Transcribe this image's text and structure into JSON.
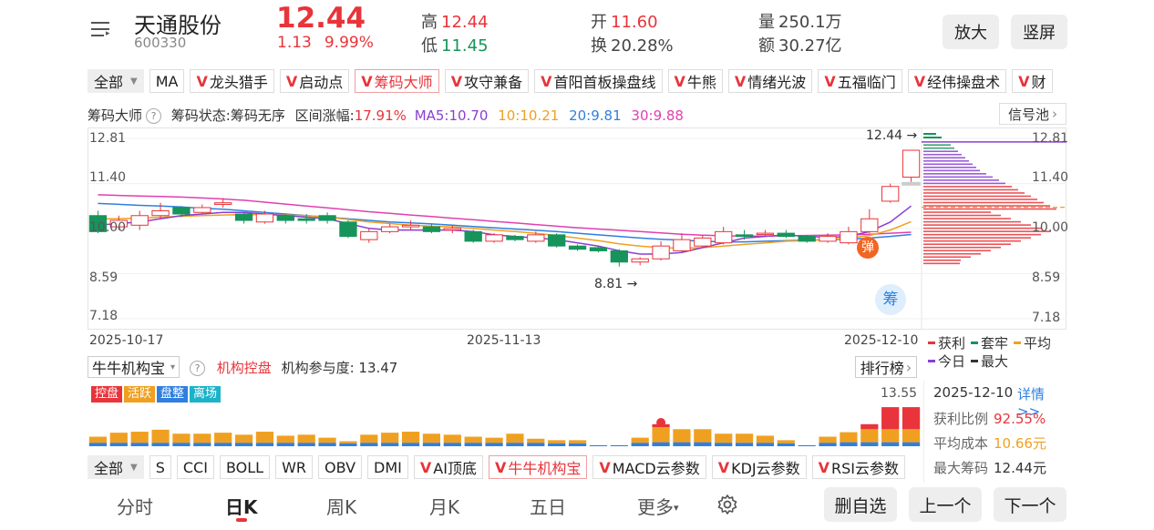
{
  "header": {
    "name": "天通股份",
    "code": "600330",
    "price": "12.44",
    "change": "1.13",
    "change_pct": "9.99%",
    "high_label": "高",
    "high": "12.44",
    "low_label": "低",
    "low": "11.45",
    "open_label": "开",
    "open": "11.60",
    "turnover_label": "换",
    "turnover": "20.28%",
    "volume_label": "量",
    "volume": "250.1万",
    "amount_label": "额",
    "amount": "30.27亿",
    "zoom_label": "放大",
    "portrait_label": "竖屏"
  },
  "indicator_tabs": [
    "全部",
    "MA",
    "龙头猎手",
    "启动点",
    "筹码大师",
    "攻守兼备",
    "首阳首板操盘线",
    "牛熊",
    "情绪光波",
    "五福临门",
    "经伟操盘术",
    "财"
  ],
  "main_info": {
    "title": "筹码大师",
    "status": "筹码状态:筹码无序",
    "range_label": "区间涨幅:",
    "range_value": "17.91%",
    "ma5": "MA5:10.70",
    "ma10": "10:10.21",
    "ma20": "20:9.81",
    "ma30": "30:9.88",
    "signal_pool": "信号池"
  },
  "colors": {
    "up": "#e8343a",
    "down": "#16945b",
    "ma5": "#8a3fd1",
    "ma10": "#f0a020",
    "ma20": "#2f7fe0",
    "ma30": "#e040b0"
  },
  "chart_data": {
    "type": "candlestick",
    "y_ticks": [
      "12.81",
      "11.40",
      "10.00",
      "8.59",
      "7.18"
    ],
    "ylim": [
      7.18,
      12.81
    ],
    "x_ticks": [
      "2025-10-17",
      "2025-11-13",
      "2025-12-10"
    ],
    "high_marker": "12.44",
    "low_marker": "8.81",
    "candles": [
      {
        "o": 10.4,
        "c": 9.9,
        "h": 10.55,
        "l": 9.85
      },
      {
        "o": 10.05,
        "c": 10.25,
        "h": 10.4,
        "l": 9.95
      },
      {
        "o": 10.1,
        "c": 10.4,
        "h": 10.55,
        "l": 9.95
      },
      {
        "o": 10.4,
        "c": 10.55,
        "h": 10.8,
        "l": 10.3
      },
      {
        "o": 10.65,
        "c": 10.45,
        "h": 10.7,
        "l": 10.35
      },
      {
        "o": 10.5,
        "c": 10.65,
        "h": 10.75,
        "l": 10.45
      },
      {
        "o": 10.75,
        "c": 10.8,
        "h": 10.95,
        "l": 10.65
      },
      {
        "o": 10.45,
        "c": 10.25,
        "h": 10.5,
        "l": 10.15
      },
      {
        "o": 10.2,
        "c": 10.45,
        "h": 10.55,
        "l": 10.15
      },
      {
        "o": 10.4,
        "c": 10.25,
        "h": 10.45,
        "l": 10.15
      },
      {
        "o": 10.3,
        "c": 10.25,
        "h": 10.45,
        "l": 10.15
      },
      {
        "o": 10.4,
        "c": 10.25,
        "h": 10.5,
        "l": 10.15
      },
      {
        "o": 10.2,
        "c": 9.75,
        "h": 10.25,
        "l": 9.7
      },
      {
        "o": 9.65,
        "c": 9.9,
        "h": 10.0,
        "l": 9.55
      },
      {
        "o": 9.9,
        "c": 10.05,
        "h": 10.15,
        "l": 9.85
      },
      {
        "o": 10.05,
        "c": 10.1,
        "h": 10.25,
        "l": 9.95
      },
      {
        "o": 10.05,
        "c": 9.9,
        "h": 10.15,
        "l": 9.85
      },
      {
        "o": 9.95,
        "c": 10.0,
        "h": 10.1,
        "l": 9.85
      },
      {
        "o": 9.9,
        "c": 9.6,
        "h": 9.95,
        "l": 9.55
      },
      {
        "o": 9.6,
        "c": 9.8,
        "h": 9.85,
        "l": 9.55
      },
      {
        "o": 9.75,
        "c": 9.65,
        "h": 9.8,
        "l": 9.6
      },
      {
        "o": 9.6,
        "c": 9.8,
        "h": 9.9,
        "l": 9.55
      },
      {
        "o": 9.8,
        "c": 9.45,
        "h": 9.85,
        "l": 9.4
      },
      {
        "o": 9.45,
        "c": 9.35,
        "h": 9.5,
        "l": 9.3
      },
      {
        "o": 9.4,
        "c": 9.3,
        "h": 9.45,
        "l": 9.25
      },
      {
        "o": 9.3,
        "c": 8.95,
        "h": 9.35,
        "l": 8.81
      },
      {
        "o": 8.95,
        "c": 9.05,
        "h": 9.1,
        "l": 8.85
      },
      {
        "o": 9.05,
        "c": 9.45,
        "h": 9.6,
        "l": 9.0
      },
      {
        "o": 9.3,
        "c": 9.65,
        "h": 9.85,
        "l": 9.25
      },
      {
        "o": 9.45,
        "c": 9.7,
        "h": 9.8,
        "l": 9.4
      },
      {
        "o": 9.55,
        "c": 9.9,
        "h": 10.05,
        "l": 9.5
      },
      {
        "o": 9.8,
        "c": 9.75,
        "h": 9.95,
        "l": 9.65
      },
      {
        "o": 9.85,
        "c": 9.85,
        "h": 9.95,
        "l": 9.75
      },
      {
        "o": 9.85,
        "c": 9.75,
        "h": 9.95,
        "l": 9.7
      },
      {
        "o": 9.75,
        "c": 9.6,
        "h": 9.8,
        "l": 9.55
      },
      {
        "o": 9.6,
        "c": 9.75,
        "h": 9.85,
        "l": 9.55
      },
      {
        "o": 9.55,
        "c": 9.9,
        "h": 10.05,
        "l": 9.5
      },
      {
        "o": 9.9,
        "c": 10.3,
        "h": 10.6,
        "l": 9.85
      },
      {
        "o": 10.85,
        "c": 11.31,
        "h": 11.4,
        "l": 10.8
      },
      {
        "o": 11.6,
        "c": 12.44,
        "h": 12.44,
        "l": 11.45
      }
    ],
    "ma5": [
      10.1,
      10.15,
      10.2,
      10.3,
      10.4,
      10.45,
      10.5,
      10.5,
      10.45,
      10.4,
      10.35,
      10.3,
      10.15,
      10.0,
      9.95,
      9.95,
      9.95,
      9.95,
      9.9,
      9.8,
      9.75,
      9.7,
      9.65,
      9.55,
      9.45,
      9.3,
      9.2,
      9.2,
      9.25,
      9.4,
      9.55,
      9.7,
      9.75,
      9.8,
      9.75,
      9.72,
      9.75,
      9.9,
      10.2,
      10.7
    ],
    "ma10": [
      10.3,
      10.3,
      10.32,
      10.35,
      10.38,
      10.4,
      10.42,
      10.43,
      10.43,
      10.42,
      10.4,
      10.35,
      10.28,
      10.2,
      10.15,
      10.1,
      10.07,
      10.05,
      10.0,
      9.95,
      9.9,
      9.85,
      9.78,
      9.7,
      9.62,
      9.52,
      9.45,
      9.4,
      9.38,
      9.4,
      9.45,
      9.5,
      9.55,
      9.6,
      9.62,
      9.65,
      9.7,
      9.78,
      9.95,
      10.21
    ],
    "ma20": [
      10.78,
      10.75,
      10.72,
      10.7,
      10.67,
      10.63,
      10.6,
      10.55,
      10.5,
      10.45,
      10.4,
      10.35,
      10.3,
      10.25,
      10.2,
      10.17,
      10.14,
      10.1,
      10.06,
      10.02,
      9.98,
      9.94,
      9.9,
      9.85,
      9.8,
      9.75,
      9.7,
      9.66,
      9.63,
      9.6,
      9.58,
      9.58,
      9.6,
      9.62,
      9.63,
      9.65,
      9.66,
      9.7,
      9.75,
      9.81
    ],
    "ma30": [
      11.05,
      11.03,
      11.01,
      11.0,
      10.98,
      10.95,
      10.92,
      10.88,
      10.82,
      10.76,
      10.7,
      10.64,
      10.58,
      10.52,
      10.47,
      10.42,
      10.37,
      10.32,
      10.27,
      10.22,
      10.17,
      10.12,
      10.07,
      10.02,
      9.98,
      9.94,
      9.9,
      9.86,
      9.82,
      9.79,
      9.77,
      9.76,
      9.76,
      9.77,
      9.78,
      9.79,
      9.8,
      9.82,
      9.85,
      9.88
    ],
    "chip_legend": [
      "获利",
      "套牢",
      "平均",
      "今日",
      "最大"
    ]
  },
  "sub_panel": {
    "selector": "牛牛机构宝",
    "label": "机构控盘",
    "participation": "机构参与度: 13.47",
    "rank_button": "排行榜",
    "badges": [
      "控盘",
      "活跃",
      "盘整",
      "离场"
    ],
    "max_value": "13.55",
    "bars": [
      {
        "o": 0.6,
        "b": 0.35,
        "r": 0
      },
      {
        "o": 1.0,
        "b": 0.35,
        "r": 0
      },
      {
        "o": 1.1,
        "b": 0.35,
        "r": 0
      },
      {
        "o": 1.3,
        "b": 0.35,
        "r": 0
      },
      {
        "o": 0.9,
        "b": 0.35,
        "r": 0
      },
      {
        "o": 0.9,
        "b": 0.35,
        "r": 0
      },
      {
        "o": 1.0,
        "b": 0.35,
        "r": 0
      },
      {
        "o": 0.8,
        "b": 0.35,
        "r": 0
      },
      {
        "o": 1.1,
        "b": 0.35,
        "r": 0
      },
      {
        "o": 0.7,
        "b": 0.35,
        "r": 0
      },
      {
        "o": 0.8,
        "b": 0.35,
        "r": 0
      },
      {
        "o": 0.5,
        "b": 0.35,
        "r": 0
      },
      {
        "o": 0.2,
        "b": 0.3,
        "r": 0
      },
      {
        "o": 0.8,
        "b": 0.35,
        "r": 0
      },
      {
        "o": 1.0,
        "b": 0.35,
        "r": 0
      },
      {
        "o": 1.1,
        "b": 0.35,
        "r": 0
      },
      {
        "o": 0.9,
        "b": 0.35,
        "r": 0
      },
      {
        "o": 0.8,
        "b": 0.35,
        "r": 0
      },
      {
        "o": 0.6,
        "b": 0.35,
        "r": 0
      },
      {
        "o": 0.5,
        "b": 0.35,
        "r": 0
      },
      {
        "o": 0.9,
        "b": 0.35,
        "r": 0
      },
      {
        "o": 0.4,
        "b": 0.35,
        "r": 0
      },
      {
        "o": 0.3,
        "b": 0.3,
        "r": 0
      },
      {
        "o": 0.3,
        "b": 0.3,
        "r": 0
      },
      {
        "o": 0,
        "b": 0.1,
        "r": 0
      },
      {
        "o": 0,
        "b": 0.1,
        "r": 0
      },
      {
        "o": 0.5,
        "b": 0.35,
        "r": 0
      },
      {
        "o": 1.5,
        "b": 0.4,
        "r": 0.3
      },
      {
        "o": 1.3,
        "b": 0.4,
        "r": 0
      },
      {
        "o": 1.3,
        "b": 0.4,
        "r": 0
      },
      {
        "o": 0.9,
        "b": 0.35,
        "r": 0
      },
      {
        "o": 0.9,
        "b": 0.35,
        "r": 0
      },
      {
        "o": 0.7,
        "b": 0.35,
        "r": 0
      },
      {
        "o": 0.3,
        "b": 0.3,
        "r": 0
      },
      {
        "o": 0,
        "b": 0.1,
        "r": 0
      },
      {
        "o": 0.6,
        "b": 0.35,
        "r": 0
      },
      {
        "o": 1.0,
        "b": 0.4,
        "r": 0
      },
      {
        "o": 1.3,
        "b": 0.4,
        "r": 0.5
      },
      {
        "o": 1.3,
        "b": 0.4,
        "r": 2.2
      },
      {
        "o": 1.3,
        "b": 0.4,
        "r": 2.2
      }
    ],
    "info": {
      "date": "2025-12-10",
      "detail": "详情>>",
      "profit_label": "获利比例",
      "profit": "92.55%",
      "avg_label": "平均成本",
      "avg": "10.66元",
      "max_label": "最大筹码",
      "max": "12.44元"
    }
  },
  "sub_tabs": [
    "全部",
    "S",
    "CCI",
    "BOLL",
    "WR",
    "OBV",
    "DMI",
    "AI顶底",
    "牛牛机构宝",
    "MACD云参数",
    "KDJ云参数",
    "RSI云参数"
  ],
  "bottom_nav": {
    "tabs": [
      "分时",
      "日K",
      "周K",
      "月K",
      "五日",
      "更多"
    ],
    "actions": [
      "删自选",
      "上一个",
      "下一个"
    ]
  }
}
